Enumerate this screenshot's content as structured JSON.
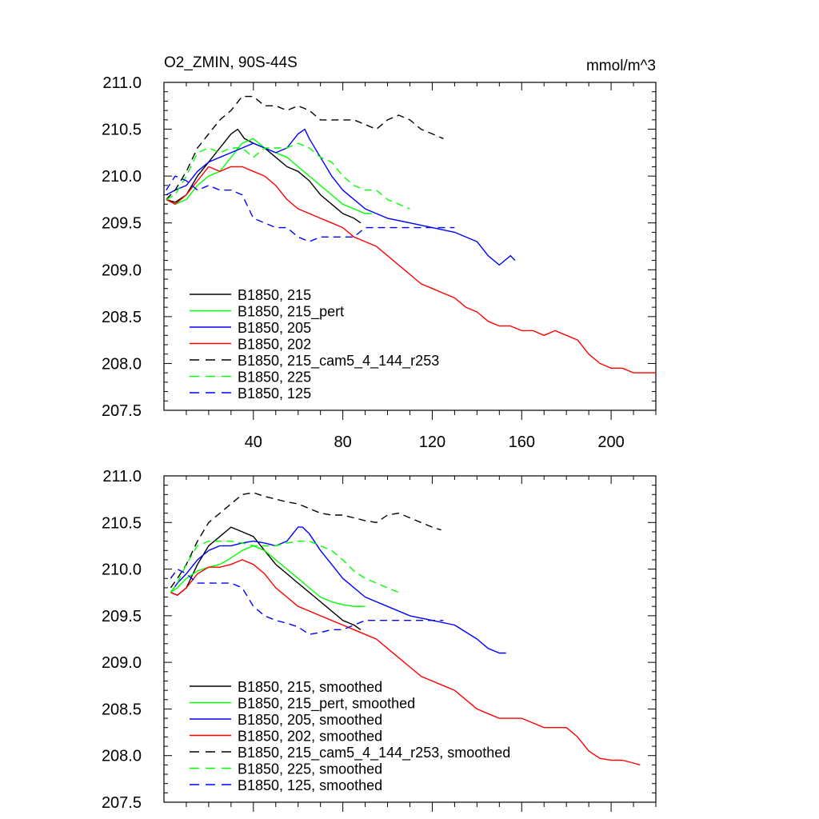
{
  "figure": {
    "title_left": "O2_ZMIN, 90S-44S",
    "title_right": "mmol/m^3"
  },
  "chart_data": [
    {
      "type": "line",
      "panel": "top",
      "xlim": [
        0,
        220
      ],
      "ylim": [
        207.5,
        211.0
      ],
      "x_ticks": [
        40,
        80,
        120,
        160,
        200
      ],
      "x_tick_labels": [
        "40",
        "80",
        "120",
        "160",
        "200"
      ],
      "y_ticks": [
        207.5,
        208.0,
        208.5,
        209.0,
        209.5,
        210.0,
        210.5,
        211.0
      ],
      "y_tick_labels": [
        "207.5",
        "208.0",
        "208.5",
        "209.0",
        "209.5",
        "210.0",
        "210.5",
        "211.0"
      ],
      "legend_position": "bottom-left",
      "series": [
        {
          "name": "B1850, 215",
          "color": "#000000",
          "dash": "solid",
          "x": [
            1,
            5,
            10,
            15,
            20,
            25,
            30,
            33,
            36,
            40,
            45,
            50,
            55,
            60,
            65,
            70,
            75,
            80,
            85,
            88
          ],
          "y": [
            209.75,
            209.72,
            209.8,
            210.0,
            210.15,
            210.3,
            210.45,
            210.5,
            210.4,
            210.35,
            210.3,
            210.2,
            210.1,
            210.05,
            209.95,
            209.8,
            209.7,
            209.6,
            209.55,
            209.5
          ]
        },
        {
          "name": "B1850, 215_pert",
          "color": "#00ff00",
          "dash": "solid",
          "x": [
            1,
            5,
            10,
            15,
            20,
            25,
            30,
            35,
            40,
            45,
            50,
            55,
            60,
            65,
            70,
            75,
            80,
            85,
            90,
            93
          ],
          "y": [
            209.75,
            209.7,
            209.75,
            209.9,
            210.0,
            210.05,
            210.2,
            210.35,
            210.4,
            210.3,
            210.25,
            210.2,
            210.1,
            210.0,
            209.9,
            209.8,
            209.7,
            209.65,
            209.6,
            209.6
          ]
        },
        {
          "name": "B1850, 205",
          "color": "#0000ff",
          "dash": "solid",
          "x": [
            1,
            5,
            10,
            15,
            20,
            25,
            30,
            35,
            40,
            45,
            50,
            55,
            60,
            63,
            65,
            70,
            75,
            80,
            90,
            100,
            110,
            120,
            130,
            140,
            145,
            150,
            155,
            157
          ],
          "y": [
            209.8,
            209.85,
            209.9,
            210.05,
            210.15,
            210.2,
            210.25,
            210.3,
            210.35,
            210.3,
            210.25,
            210.3,
            210.45,
            210.5,
            210.4,
            210.2,
            210.0,
            209.85,
            209.65,
            209.55,
            209.5,
            209.45,
            209.4,
            209.3,
            209.15,
            209.05,
            209.15,
            209.1
          ]
        },
        {
          "name": "B1850, 202",
          "color": "#ff0000",
          "dash": "solid",
          "x": [
            1,
            5,
            10,
            15,
            20,
            25,
            30,
            35,
            40,
            45,
            50,
            55,
            60,
            65,
            70,
            75,
            80,
            85,
            90,
            95,
            100,
            105,
            110,
            115,
            120,
            125,
            130,
            135,
            140,
            145,
            150,
            155,
            160,
            165,
            170,
            175,
            180,
            185,
            190,
            195,
            200,
            205,
            210,
            215,
            220
          ],
          "y": [
            209.75,
            209.7,
            209.8,
            209.95,
            210.1,
            210.05,
            210.1,
            210.1,
            210.05,
            210.0,
            209.9,
            209.75,
            209.65,
            209.6,
            209.55,
            209.5,
            209.45,
            209.35,
            209.3,
            209.25,
            209.15,
            209.05,
            208.95,
            208.85,
            208.8,
            208.75,
            208.7,
            208.6,
            208.55,
            208.45,
            208.4,
            208.4,
            208.35,
            208.35,
            208.3,
            208.35,
            208.3,
            208.25,
            208.1,
            208.0,
            207.95,
            207.95,
            207.9,
            207.9,
            207.9
          ]
        },
        {
          "name": "B1850, 215_cam5_4_144_r253",
          "color": "#000000",
          "dash": "dashed",
          "x": [
            1,
            5,
            10,
            15,
            20,
            25,
            30,
            35,
            40,
            45,
            50,
            55,
            60,
            65,
            70,
            75,
            80,
            85,
            90,
            95,
            100,
            105,
            110,
            115,
            120,
            125
          ],
          "y": [
            209.75,
            209.85,
            210.05,
            210.3,
            210.45,
            210.6,
            210.7,
            210.85,
            210.85,
            210.75,
            210.75,
            210.7,
            210.75,
            210.7,
            210.6,
            210.6,
            210.6,
            210.6,
            210.55,
            210.5,
            210.6,
            210.65,
            210.6,
            210.5,
            210.45,
            210.4
          ]
        },
        {
          "name": "B1850, 225",
          "color": "#00ff00",
          "dash": "dashed",
          "x": [
            1,
            5,
            10,
            15,
            20,
            25,
            30,
            35,
            40,
            45,
            50,
            55,
            60,
            65,
            70,
            75,
            80,
            85,
            90,
            95,
            100,
            105,
            110
          ],
          "y": [
            209.75,
            209.8,
            210.0,
            210.25,
            210.3,
            210.25,
            210.3,
            210.3,
            210.2,
            210.3,
            210.3,
            210.3,
            210.35,
            210.3,
            210.2,
            210.15,
            210.0,
            209.9,
            209.85,
            209.85,
            209.75,
            209.7,
            209.65
          ]
        },
        {
          "name": "B1850, 125",
          "color": "#0000ff",
          "dash": "dashed",
          "x": [
            1,
            5,
            10,
            15,
            20,
            25,
            30,
            35,
            40,
            45,
            50,
            55,
            60,
            65,
            70,
            75,
            80,
            85,
            90,
            95,
            100,
            105,
            110,
            115,
            120,
            125,
            130
          ],
          "y": [
            209.85,
            210.0,
            209.95,
            209.85,
            209.9,
            209.85,
            209.85,
            209.8,
            209.55,
            209.5,
            209.45,
            209.45,
            209.35,
            209.3,
            209.35,
            209.35,
            209.35,
            209.35,
            209.45,
            209.45,
            209.45,
            209.45,
            209.45,
            209.45,
            209.45,
            209.45,
            209.45
          ]
        }
      ]
    },
    {
      "type": "line",
      "panel": "bottom",
      "xlim": [
        0,
        220
      ],
      "ylim": [
        207.5,
        211.0
      ],
      "y_ticks": [
        207.5,
        208.0,
        208.5,
        209.0,
        209.5,
        210.0,
        210.5,
        211.0
      ],
      "y_tick_labels": [
        "207.5",
        "208.0",
        "208.5",
        "209.0",
        "209.5",
        "210.0",
        "210.5",
        "211.0"
      ],
      "legend_position": "bottom-left",
      "series": [
        {
          "name": "B1850, 215, smoothed",
          "color": "#000000",
          "dash": "solid",
          "x": [
            3,
            6,
            10,
            15,
            20,
            25,
            30,
            35,
            40,
            45,
            50,
            55,
            60,
            65,
            70,
            75,
            80,
            85,
            88
          ],
          "y": [
            209.75,
            209.72,
            209.8,
            210.05,
            210.25,
            210.35,
            210.45,
            210.4,
            210.35,
            210.2,
            210.05,
            209.95,
            209.85,
            209.75,
            209.65,
            209.55,
            209.45,
            209.4,
            209.35
          ]
        },
        {
          "name": "B1850, 215_pert, smoothed",
          "color": "#00ff00",
          "dash": "solid",
          "x": [
            3,
            6,
            10,
            15,
            20,
            25,
            30,
            35,
            40,
            45,
            50,
            55,
            60,
            65,
            70,
            75,
            80,
            85,
            90
          ],
          "y": [
            209.75,
            209.8,
            209.9,
            209.98,
            210.02,
            210.05,
            210.12,
            210.2,
            210.25,
            210.2,
            210.1,
            210.0,
            209.9,
            209.8,
            209.7,
            209.65,
            209.62,
            209.6,
            209.6
          ]
        },
        {
          "name": "B1850, 205, smoothed",
          "color": "#0000ff",
          "dash": "solid",
          "x": [
            3,
            6,
            10,
            15,
            20,
            25,
            30,
            35,
            40,
            45,
            50,
            55,
            60,
            62,
            65,
            70,
            75,
            80,
            90,
            100,
            110,
            120,
            130,
            140,
            145,
            150,
            153
          ],
          "y": [
            209.75,
            209.85,
            209.95,
            210.1,
            210.2,
            210.25,
            210.25,
            210.28,
            210.3,
            210.28,
            210.25,
            210.3,
            210.45,
            210.45,
            210.38,
            210.2,
            210.05,
            209.9,
            209.7,
            209.6,
            209.5,
            209.45,
            209.4,
            209.25,
            209.15,
            209.1,
            209.1
          ]
        },
        {
          "name": "B1850, 202, smoothed",
          "color": "#ff0000",
          "dash": "solid",
          "x": [
            3,
            6,
            10,
            15,
            20,
            25,
            30,
            35,
            40,
            45,
            50,
            55,
            60,
            65,
            70,
            75,
            80,
            85,
            90,
            95,
            100,
            105,
            110,
            115,
            120,
            125,
            130,
            135,
            140,
            145,
            150,
            155,
            160,
            165,
            170,
            175,
            180,
            185,
            190,
            195,
            200,
            205,
            210,
            213
          ],
          "y": [
            209.75,
            209.72,
            209.8,
            209.95,
            210.02,
            210.02,
            210.05,
            210.1,
            210.05,
            209.95,
            209.8,
            209.7,
            209.6,
            209.55,
            209.5,
            209.45,
            209.4,
            209.35,
            209.3,
            209.25,
            209.15,
            209.05,
            208.95,
            208.85,
            208.8,
            208.75,
            208.7,
            208.6,
            208.5,
            208.45,
            208.4,
            208.4,
            208.4,
            208.35,
            208.3,
            208.3,
            208.3,
            208.2,
            208.05,
            207.97,
            207.95,
            207.95,
            207.92,
            207.9
          ]
        },
        {
          "name": "B1850, 215_cam5_4_144_r253, smoothed",
          "color": "#000000",
          "dash": "dashed",
          "x": [
            3,
            6,
            10,
            15,
            20,
            25,
            30,
            35,
            40,
            45,
            50,
            55,
            60,
            65,
            70,
            75,
            80,
            85,
            90,
            95,
            100,
            105,
            110,
            115,
            120,
            124
          ],
          "y": [
            209.8,
            209.9,
            210.05,
            210.3,
            210.5,
            210.6,
            210.7,
            210.8,
            210.82,
            210.78,
            210.75,
            210.72,
            210.7,
            210.65,
            210.6,
            210.58,
            210.58,
            210.55,
            210.52,
            210.5,
            210.58,
            210.6,
            210.55,
            210.5,
            210.45,
            210.42
          ]
        },
        {
          "name": "B1850, 225, smoothed",
          "color": "#00ff00",
          "dash": "dashed",
          "x": [
            3,
            6,
            10,
            15,
            20,
            25,
            30,
            35,
            40,
            45,
            50,
            55,
            60,
            65,
            70,
            75,
            80,
            85,
            90,
            95,
            100,
            105
          ],
          "y": [
            209.75,
            209.85,
            210.05,
            210.25,
            210.3,
            210.3,
            210.3,
            210.28,
            210.25,
            210.25,
            210.25,
            210.28,
            210.3,
            210.3,
            210.25,
            210.2,
            210.1,
            209.98,
            209.9,
            209.85,
            209.8,
            209.75
          ]
        },
        {
          "name": "B1850, 125, smoothed",
          "color": "#0000ff",
          "dash": "dashed",
          "x": [
            3,
            6,
            10,
            15,
            20,
            25,
            30,
            35,
            40,
            45,
            50,
            55,
            60,
            65,
            70,
            75,
            80,
            85,
            90,
            95,
            100,
            105,
            110,
            115,
            120,
            125
          ],
          "y": [
            209.9,
            210.0,
            209.95,
            209.85,
            209.85,
            209.85,
            209.85,
            209.8,
            209.6,
            209.5,
            209.45,
            209.42,
            209.38,
            209.3,
            209.32,
            209.35,
            209.35,
            209.4,
            209.45,
            209.45,
            209.45,
            209.45,
            209.45,
            209.45,
            209.45,
            209.45
          ]
        }
      ]
    }
  ]
}
